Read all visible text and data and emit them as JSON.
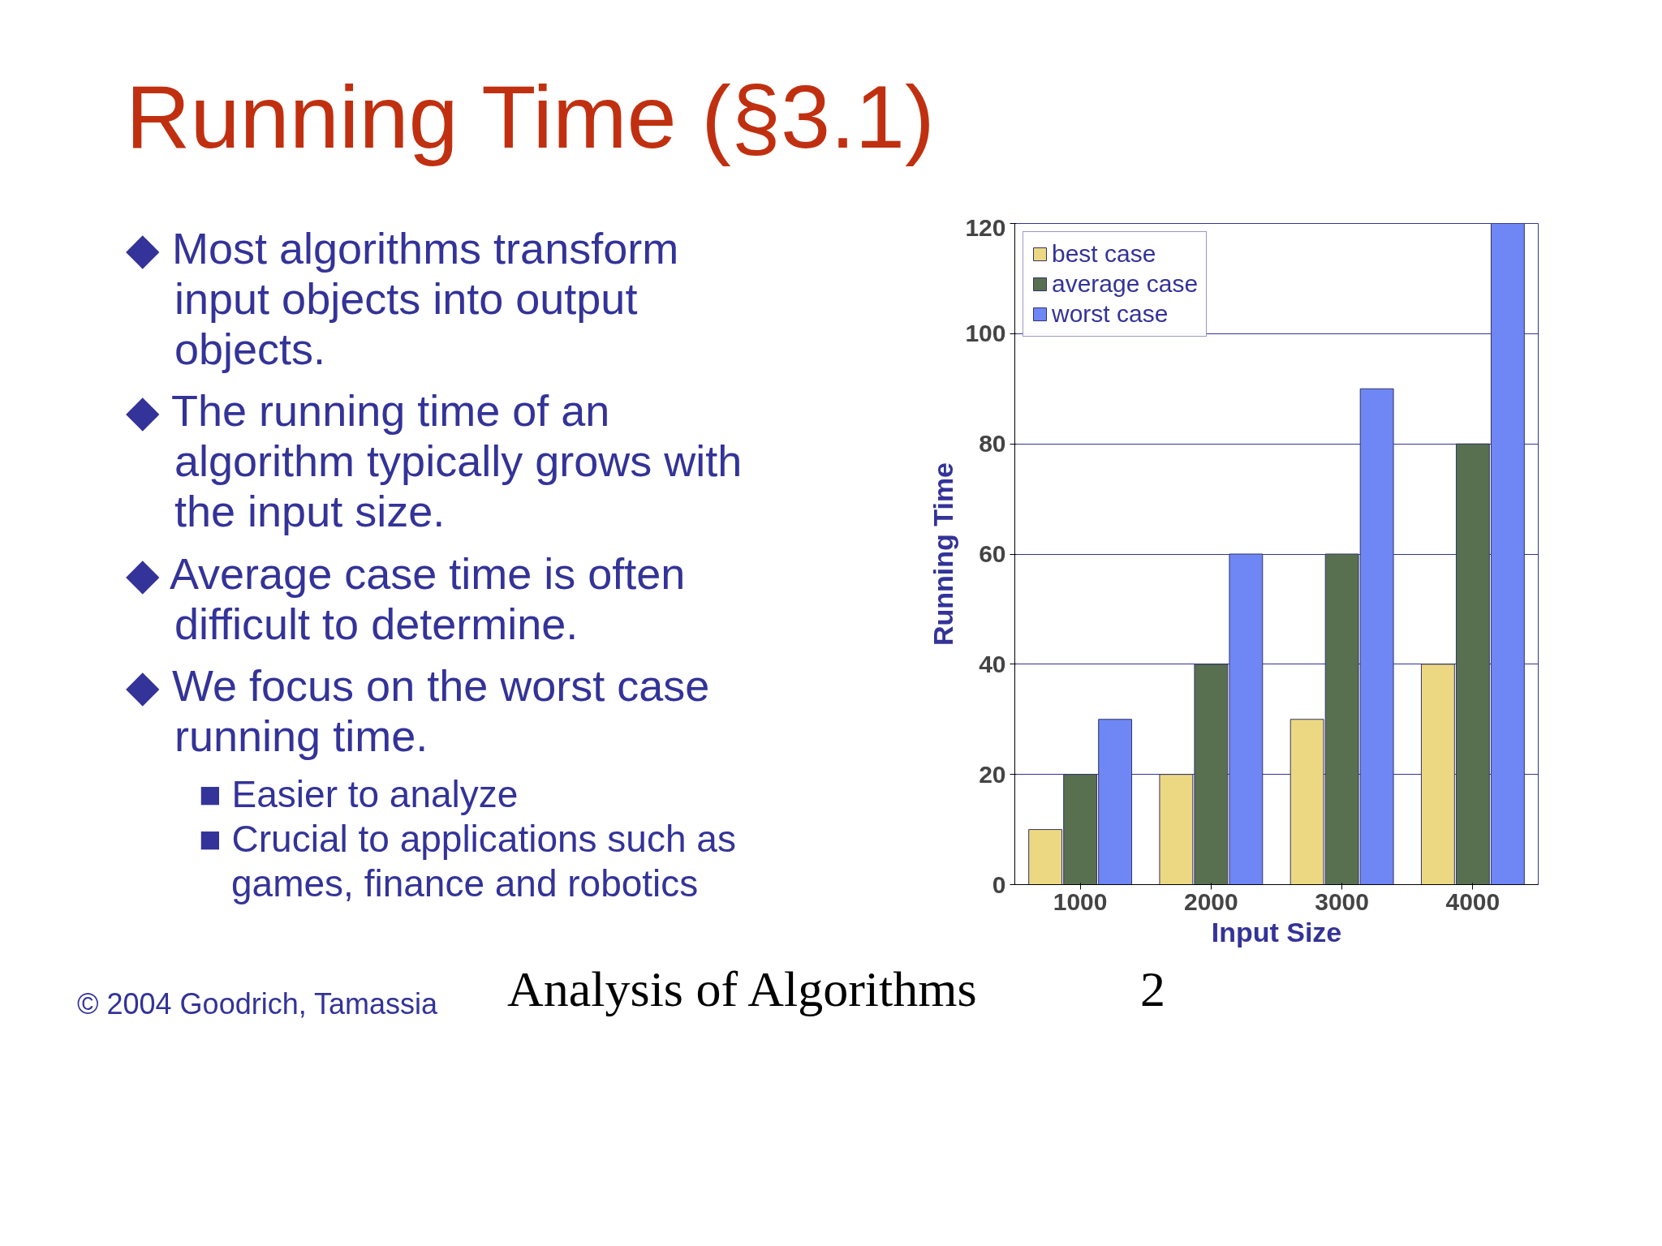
{
  "chart_data": {
    "type": "bar",
    "title": "Running Time (§3.1)",
    "xlabel": "Input Size",
    "ylabel": "Running Time",
    "categories": [
      "1000",
      "2000",
      "3000",
      "4000"
    ],
    "series": [
      {
        "name": "best case",
        "color": "#ecd882",
        "values": [
          10,
          20,
          30,
          40
        ]
      },
      {
        "name": "average case",
        "color": "#58704f",
        "values": [
          20,
          40,
          60,
          80
        ]
      },
      {
        "name": "worst case",
        "color": "#6f86f5",
        "values": [
          30,
          60,
          90,
          120
        ]
      }
    ],
    "ylim": [
      0,
      120
    ],
    "yticks": [
      0,
      20,
      40,
      60,
      80,
      100,
      120
    ],
    "grid": "y",
    "legend": "top left",
    "annotations": [
      "◆ Most algorithms transform input objects into output objects.",
      "◆ The running time of an algorithm typically grows with the input size.",
      "◆ Average case time is often difficult to determine.",
      "◆ We focus on the worst case running time.",
      "■ Easier to analyze",
      "■ Crucial to applications such as games, finance and robotics",
      "© 2004 Goodrich, Tamassia",
      "Analysis of Algorithms",
      "2"
    ]
  }
}
